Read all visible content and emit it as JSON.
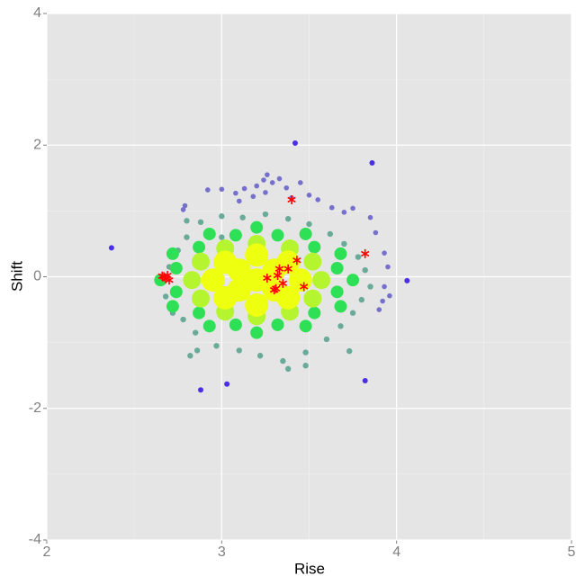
{
  "chart_data": {
    "type": "scatter",
    "xlabel": "Rise",
    "ylabel": "Shift",
    "xlim": [
      2,
      5
    ],
    "ylim": [
      -4,
      4
    ],
    "xticks": [
      2,
      3,
      4,
      5
    ],
    "yticks": [
      -4,
      -2,
      0,
      2,
      4
    ],
    "grid": true,
    "series": [
      {
        "color": "#7570cc",
        "marker": "circle",
        "x": [
          2.79,
          2.78,
          2.92,
          3.0,
          3.08,
          3.13,
          3.18,
          3.2,
          3.24,
          3.26,
          3.29,
          3.33,
          3.37,
          3.45,
          3.5,
          3.55,
          3.63,
          3.7,
          3.75,
          3.85,
          3.88,
          3.93,
          3.95,
          3.92,
          3.9,
          3.93,
          3.96,
          3.25,
          3.1,
          3.4
        ],
        "y": [
          1.08,
          1.02,
          1.32,
          1.33,
          1.27,
          1.34,
          1.22,
          1.38,
          1.47,
          1.55,
          1.43,
          1.49,
          1.35,
          1.43,
          1.24,
          1.17,
          1.05,
          0.98,
          1.04,
          0.9,
          0.67,
          0.36,
          0.15,
          -0.37,
          -0.5,
          -0.15,
          -0.29,
          1.28,
          1.15,
          1.2
        ]
      },
      {
        "color": "#4a2fe6",
        "marker": "circle",
        "x": [
          2.37,
          3.42,
          3.86,
          4.06,
          2.88,
          3.03,
          3.82
        ],
        "y": [
          0.44,
          2.03,
          1.73,
          -0.06,
          -1.72,
          -1.63,
          -1.58
        ]
      },
      {
        "color": "#6aaa98",
        "marker": "circle",
        "x": [
          2.65,
          2.7,
          2.75,
          2.8,
          2.88,
          3.0,
          3.12,
          3.25,
          3.38,
          3.5,
          3.62,
          3.7,
          3.78,
          3.82,
          3.85,
          3.8,
          3.75,
          3.68,
          3.6,
          3.48,
          3.35,
          3.48,
          3.22,
          3.1,
          2.97,
          2.85,
          2.82,
          2.78,
          2.72,
          2.68,
          3.38,
          3.73,
          2.86,
          2.72,
          3.0,
          2.8
        ],
        "y": [
          -0.1,
          0.15,
          0.4,
          0.6,
          0.83,
          0.92,
          0.9,
          0.95,
          0.88,
          0.8,
          0.65,
          0.5,
          0.3,
          0.1,
          -0.15,
          -0.35,
          -0.55,
          -0.75,
          -0.95,
          -1.15,
          -1.28,
          -1.35,
          -1.2,
          -1.12,
          -1.05,
          -0.85,
          -1.2,
          -0.65,
          -0.45,
          -0.3,
          -1.4,
          -1.13,
          -1.12,
          -0.55,
          0.6,
          0.85
        ]
      },
      {
        "color": "#2ee055",
        "marker": "circle",
        "x": [
          3.75,
          3.68,
          3.48,
          3.2,
          2.93,
          2.72,
          2.65,
          2.72,
          2.93,
          3.2,
          3.48,
          3.68,
          3.66,
          3.53,
          3.32,
          3.08,
          2.87,
          2.74,
          2.74,
          2.87,
          3.08,
          3.32,
          3.53,
          3.66
        ],
        "y": [
          -0.05,
          0.35,
          0.65,
          0.75,
          0.65,
          0.35,
          -0.05,
          -0.45,
          -0.75,
          -0.85,
          -0.75,
          -0.45,
          0.13,
          0.45,
          0.63,
          0.63,
          0.45,
          0.13,
          -0.23,
          -0.55,
          -0.73,
          -0.73,
          -0.55,
          -0.23
        ]
      },
      {
        "color": "#b5f530",
        "marker": "circle",
        "x": [
          3.57,
          3.52,
          3.39,
          3.2,
          3.02,
          2.88,
          2.83,
          2.88,
          3.02,
          3.2,
          3.39,
          3.52
        ],
        "y": [
          -0.05,
          0.23,
          0.43,
          0.5,
          0.43,
          0.23,
          -0.05,
          -0.33,
          -0.53,
          -0.6,
          -0.53,
          -0.33
        ]
      },
      {
        "color": "#eeff10",
        "marker": "circle",
        "x": [
          3.2,
          3.45,
          3.38,
          3.2,
          3.02,
          2.95,
          3.02,
          3.2,
          3.38,
          3.1,
          3.3,
          3.1,
          3.3
        ],
        "y": [
          -0.05,
          -0.05,
          0.22,
          0.33,
          0.22,
          -0.05,
          -0.32,
          -0.43,
          -0.32,
          0.1,
          0.1,
          -0.2,
          -0.2
        ]
      },
      {
        "color": "#ff0000",
        "marker": "asterisk",
        "x": [
          2.67,
          2.69,
          2.68,
          2.7,
          2.66,
          3.26,
          3.3,
          3.31,
          3.32,
          3.33,
          3.35,
          3.38,
          3.4,
          3.43,
          3.47,
          3.82
        ],
        "y": [
          0.0,
          0.02,
          -0.03,
          -0.05,
          0.01,
          -0.02,
          -0.2,
          -0.18,
          0.02,
          0.12,
          -0.1,
          0.12,
          1.17,
          0.25,
          -0.15,
          0.35
        ]
      }
    ]
  }
}
